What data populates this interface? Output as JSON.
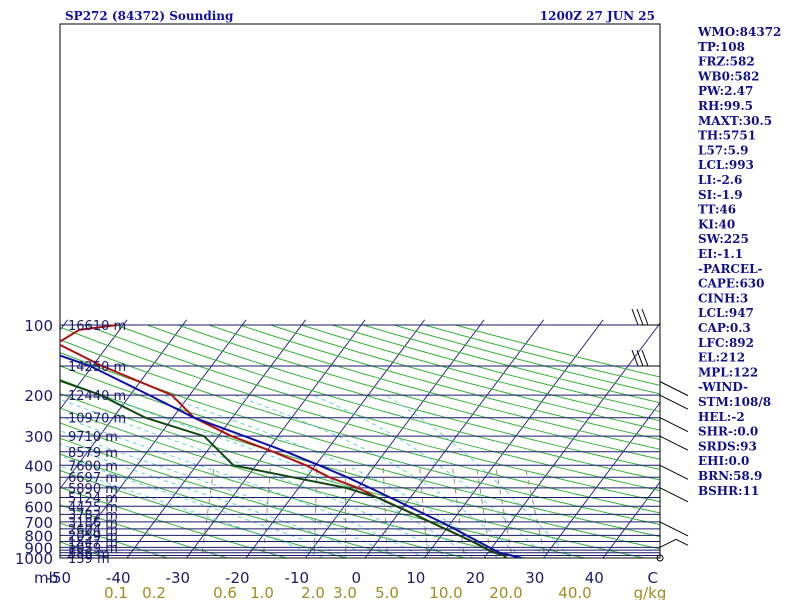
{
  "header": {
    "station": "SP272 (84372) Sounding",
    "time": "1200Z 27 JUN 25"
  },
  "chart_data": {
    "type": "line",
    "title": "SP272 (84372) Sounding",
    "subtitle": "1200Z 27 JUN 25",
    "x_unit": "C",
    "y_unit": "mb",
    "xlim": [
      -50,
      50
    ],
    "pressure_levels": [
      100,
      200,
      300,
      400,
      500,
      600,
      700,
      800,
      900,
      1000
    ],
    "extra_isobars": [
      150,
      250,
      350,
      450,
      550,
      650,
      750,
      850,
      925,
      950,
      975
    ],
    "temp_ticks": [
      -50,
      -40,
      -30,
      -20,
      -10,
      0,
      10,
      20,
      30,
      40,
      50
    ],
    "temp_tick_labels": [
      "-50",
      "-40",
      "-30",
      "-20",
      "-10",
      "0",
      "10",
      "20",
      "30",
      "40",
      "C"
    ],
    "mixing_ratio_labels": [
      "0.1",
      "0.2",
      "0.6",
      "1.0",
      "2.0",
      "3.0",
      "5.0",
      "10.0",
      "20.0",
      "40.0",
      "g/kg"
    ],
    "mixing_ratio_values": [
      0.1,
      0.2,
      0.6,
      1.0,
      2.0,
      3.0,
      5.0,
      10.0,
      20.0,
      40.0
    ],
    "heights": [
      {
        "p": 100,
        "label": "16610 m"
      },
      {
        "p": 150,
        "label": "14250 m"
      },
      {
        "p": 200,
        "label": "12440 m"
      },
      {
        "p": 250,
        "label": "10970 m"
      },
      {
        "p": 300,
        "label": "9710 m"
      },
      {
        "p": 350,
        "label": "8579 m"
      },
      {
        "p": 400,
        "label": "7600 m"
      },
      {
        "p": 450,
        "label": "6697 m"
      },
      {
        "p": 500,
        "label": "5890 m"
      },
      {
        "p": 550,
        "label": "5124 m"
      },
      {
        "p": 600,
        "label": "4425 m"
      },
      {
        "p": 650,
        "label": "3782 m"
      },
      {
        "p": 700,
        "label": "3186 m"
      },
      {
        "p": 750,
        "label": "2604 m"
      },
      {
        "p": 800,
        "label": "2059 m"
      },
      {
        "p": 850,
        "label": "1547 m"
      },
      {
        "p": 900,
        "label": "1059 m"
      },
      {
        "p": 950,
        "label": "586 m"
      },
      {
        "p": 1000,
        "label": "139 m"
      }
    ],
    "series": [
      {
        "key": "temperature",
        "color": "#b01010",
        "points": [
          [
            1005,
            23.9
          ],
          [
            975,
            23.0
          ],
          [
            950,
            21.2
          ],
          [
            925,
            19.8
          ],
          [
            900,
            18.6
          ],
          [
            850,
            16.0
          ],
          [
            800,
            13.0
          ],
          [
            750,
            9.8
          ],
          [
            700,
            6.4
          ],
          [
            650,
            2.8
          ],
          [
            600,
            -1.2
          ],
          [
            550,
            -5.6
          ],
          [
            500,
            -10.0
          ],
          [
            450,
            -16.2
          ],
          [
            400,
            -21.6
          ],
          [
            350,
            -28.8
          ],
          [
            300,
            -37.8
          ],
          [
            250,
            -46.4
          ],
          [
            200,
            -53.0
          ],
          [
            150,
            -68.4
          ],
          [
            120,
            -78.8
          ],
          [
            105,
            -76.8
          ],
          [
            100,
            -71.0
          ]
        ]
      },
      {
        "key": "dewpoint",
        "color": "#104810",
        "points": [
          [
            1005,
            23.9
          ],
          [
            975,
            23.0
          ],
          [
            950,
            21.2
          ],
          [
            925,
            19.8
          ],
          [
            900,
            18.6
          ],
          [
            850,
            16.0
          ],
          [
            800,
            13.0
          ],
          [
            750,
            9.8
          ],
          [
            700,
            6.4
          ],
          [
            650,
            2.8
          ],
          [
            600,
            -1.2
          ],
          [
            550,
            -5.6
          ],
          [
            500,
            -12.0
          ],
          [
            450,
            -22.4
          ],
          [
            400,
            -33.8
          ],
          [
            350,
            -37.8
          ],
          [
            300,
            -42.4
          ],
          [
            250,
            -54.6
          ],
          [
            200,
            -65.0
          ],
          [
            150,
            -82.4
          ],
          [
            120,
            -84.2
          ],
          [
            105,
            -84.0
          ],
          [
            100,
            -82.4
          ]
        ]
      },
      {
        "key": "parcel",
        "color": "#1010a8",
        "points": [
          [
            1000,
            26.2
          ],
          [
            975,
            24.2
          ],
          [
            950,
            22.0
          ],
          [
            900,
            19.5
          ],
          [
            850,
            17.0
          ],
          [
            800,
            14.2
          ],
          [
            750,
            11.4
          ],
          [
            700,
            8.2
          ],
          [
            650,
            4.6
          ],
          [
            600,
            0.8
          ],
          [
            550,
            -3.4
          ],
          [
            500,
            -8.0
          ],
          [
            450,
            -13.2
          ],
          [
            400,
            -19.4
          ],
          [
            350,
            -26.6
          ],
          [
            300,
            -35.6
          ],
          [
            250,
            -46.4
          ],
          [
            200,
            -56.8
          ],
          [
            150,
            -70.4
          ],
          [
            120,
            -84.2
          ],
          [
            100,
            -94.0
          ]
        ]
      }
    ],
    "wind_barbs": [
      {
        "p": 100,
        "kind": "pennant"
      },
      {
        "p": 150,
        "kind": "pennant"
      },
      {
        "p": 175,
        "kind": "barb"
      },
      {
        "p": 200,
        "kind": "barb"
      },
      {
        "p": 250,
        "kind": "barb"
      },
      {
        "p": 300,
        "kind": "barb"
      },
      {
        "p": 400,
        "kind": "barb"
      },
      {
        "p": 500,
        "kind": "barb"
      },
      {
        "p": 700,
        "kind": "barb"
      },
      {
        "p": 900,
        "kind": "barb"
      },
      {
        "p": 1000,
        "kind": "calm"
      }
    ]
  },
  "indices": [
    "WMO:84372",
    "TP:108",
    "FRZ:582",
    "WB0:582",
    "PW:2.47",
    "RH:99.5",
    "MAXT:30.5",
    "TH:5751",
    "L57:5.9",
    "LCL:993",
    "LI:-2.6",
    "SI:-1.9",
    "TT:46",
    "KI:40",
    "SW:225",
    "EI:-1.1",
    "-PARCEL-",
    "CAPE:630",
    "CINH:3",
    "LCL:947",
    "CAP:0.3",
    "LFC:892",
    "EL:212",
    "MPL:122",
    "-WIND-",
    "STM:108/8",
    "HEL:-2",
    "SHR-:0.0",
    "SRDS:93",
    "EHI:0.0",
    "BRN:58.9",
    "BSHR:11"
  ],
  "colors": {
    "isobar": "#1a1a6a",
    "isotherm": "#2a2a8a",
    "dry_adiabat": "#38b038",
    "moist_adiabat": "#62cfe0",
    "mixing_ratio": "#9a8a6a"
  }
}
